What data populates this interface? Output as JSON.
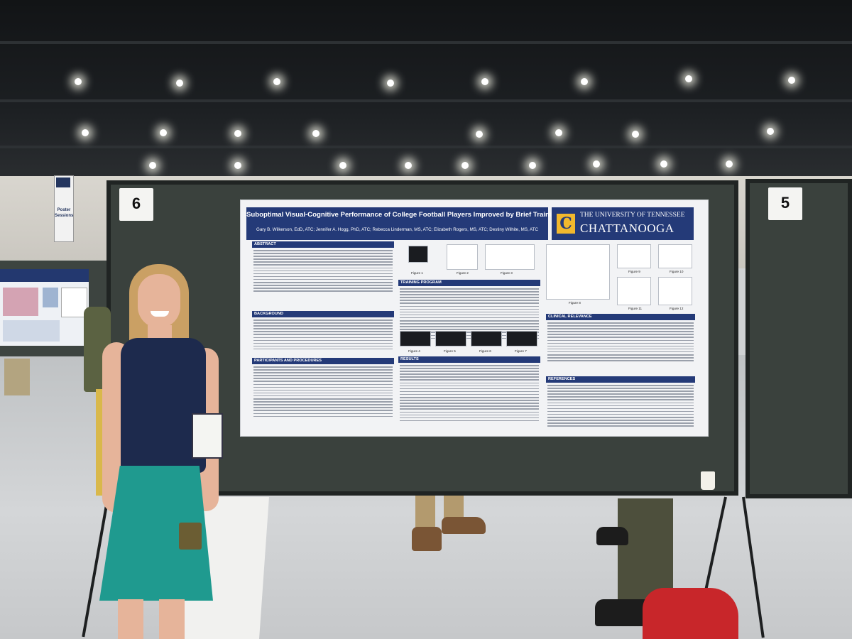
{
  "scene": {
    "banner_text": [
      "Poster",
      "Sessions"
    ],
    "board_left_number": "6",
    "board_right_number": "5"
  },
  "poster": {
    "title": "Suboptimal Visual-Cognitive Performance of College Football Players Improved by Brief Training Sessions",
    "authors": "Gary B. Wilkerson, EdD, ATC; Jennifer A. Hogg, PhD, ATC; Rebecca Linderman, MS, ATC; Elizabeth Rogers, MS, ATC; Destiny Wilhite, MS, ATC",
    "logo_mark": "C",
    "logo_line1": "THE UNIVERSITY OF TENNESSEE",
    "logo_line2": "CHATTANOOGA",
    "sections": {
      "abstract": "ABSTRACT",
      "background": "BACKGROUND",
      "participants": "PARTICIPANTS AND PROCEDURES",
      "training": "TRAINING PROGRAM",
      "results": "RESULTS",
      "clinical": "CLINICAL RELEVANCE",
      "references": "REFERENCES"
    },
    "figure_labels": [
      "Figure 1",
      "Figure 2",
      "Figure 3",
      "Figure 4",
      "Figure 5",
      "Figure 6",
      "Figure 7",
      "Figure 8",
      "Figure 9",
      "Figure 10",
      "Figure 11",
      "Figure 12"
    ]
  },
  "colors": {
    "poster_navy": "#243a78",
    "utc_gold": "#f1b82d",
    "board_green": "#3a413d",
    "skirt_teal": "#1f9a8f",
    "top_navy": "#1d2a4d",
    "bag_red": "#c8262a"
  }
}
